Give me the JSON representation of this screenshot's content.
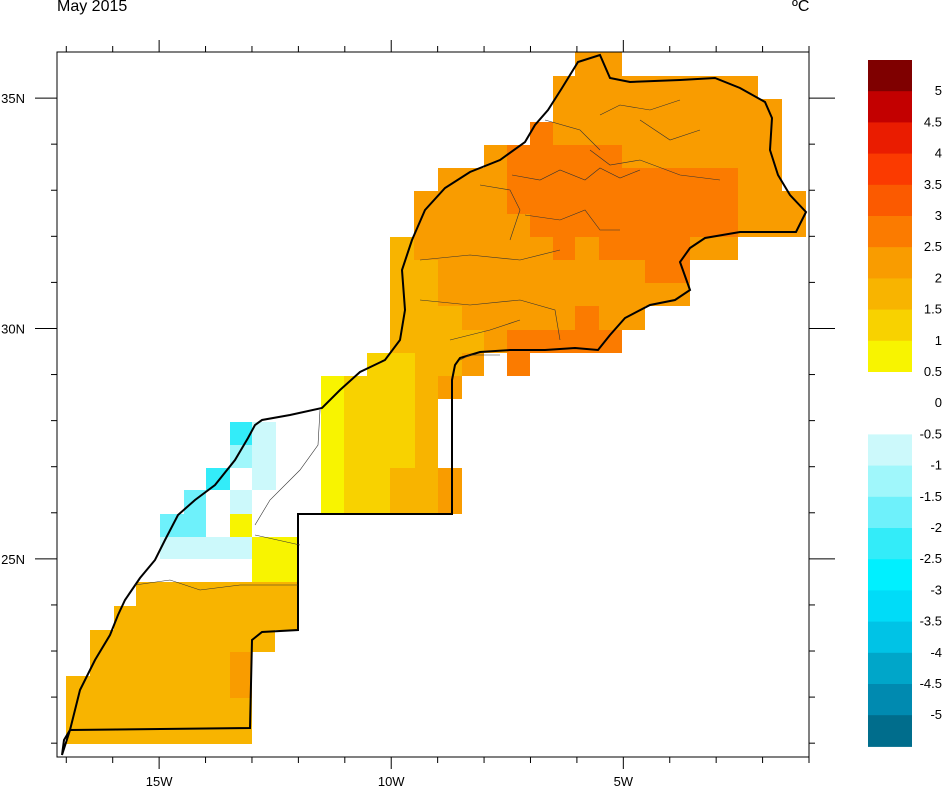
{
  "title": "May 2015",
  "unit": "ºC",
  "chart_data": {
    "type": "heatmap",
    "title": "May 2015",
    "units": "ºC",
    "x_axis": {
      "range": [
        -17.2,
        -1.0
      ],
      "tick_labels": [
        {
          "value": -15,
          "label": "15W"
        },
        {
          "value": -10,
          "label": "10W"
        },
        {
          "value": -5,
          "label": "5W"
        }
      ],
      "minor_ticks": [
        -17,
        -16,
        -14,
        -13,
        -12,
        -11,
        -9,
        -8,
        -7,
        -6,
        -4,
        -3,
        -2,
        -1
      ]
    },
    "y_axis": {
      "range": [
        20.7,
        36.0
      ],
      "tick_labels": [
        {
          "value": 35,
          "label": "35N"
        },
        {
          "value": 30,
          "label": "30N"
        },
        {
          "value": 25,
          "label": "25N"
        }
      ],
      "minor_ticks": [
        21,
        22,
        23,
        24,
        26,
        27,
        28,
        29,
        31,
        32,
        33,
        34
      ]
    },
    "grid": false,
    "legend": {
      "position": "right",
      "levels": [
        {
          "label": "5",
          "color": "#7f0000"
        },
        {
          "label": "4.5",
          "color": "#c30000"
        },
        {
          "label": "4",
          "color": "#ea1c00"
        },
        {
          "label": "3.5",
          "color": "#fb3a00"
        },
        {
          "label": "3",
          "color": "#fb5a00"
        },
        {
          "label": "2.5",
          "color": "#fb7b00"
        },
        {
          "label": "2",
          "color": "#f99c00"
        },
        {
          "label": "1.5",
          "color": "#f8b400"
        },
        {
          "label": "1",
          "color": "#f8d200"
        },
        {
          "label": "0.5",
          "color": "#f8f400"
        },
        {
          "label": "0",
          "color": "#ffffff"
        },
        {
          "label": "-0.5",
          "color": "#ffffff"
        },
        {
          "label": "-1",
          "color": "#ccf9fb"
        },
        {
          "label": "-1.5",
          "color": "#a0f7fb"
        },
        {
          "label": "-2",
          "color": "#6ef1fb"
        },
        {
          "label": "-2.5",
          "color": "#33ecf9"
        },
        {
          "label": "-3",
          "color": "#00f0ff"
        },
        {
          "label": "-3.5",
          "color": "#00dcf8"
        },
        {
          "label": "-4",
          "color": "#00c3e6"
        },
        {
          "label": "-4.5",
          "color": "#00a6c9"
        },
        {
          "label": "-5",
          "color": "#008ab0"
        },
        {
          "label": "",
          "color": "#006d8c"
        }
      ]
    },
    "cells": [
      {
        "lon": -5.5,
        "lat": 35.75,
        "value": 2.25
      },
      {
        "lon": -5.0,
        "lat": 35.5,
        "value": 2.25
      },
      {
        "lon": -6.0,
        "lat": 35.25,
        "value": 2.25
      },
      {
        "lon": -5.0,
        "lat": 35.0,
        "value": 2.25
      },
      {
        "lon": -3.5,
        "lat": 35.0,
        "value": 2.25
      },
      {
        "lon": -2.5,
        "lat": 35.0,
        "value": 2.25
      },
      {
        "lon": -6.5,
        "lat": 34.5,
        "value": 2.25
      },
      {
        "lon": -5.0,
        "lat": 34.5,
        "value": 2.25
      },
      {
        "lon": -3.0,
        "lat": 34.5,
        "value": 2.25
      },
      {
        "lon": -7.0,
        "lat": 34.0,
        "value": 2.25
      },
      {
        "lon": -5.5,
        "lat": 33.75,
        "value": 2.75
      },
      {
        "lon": -4.0,
        "lat": 34.0,
        "value": 2.25
      },
      {
        "lon": -2.0,
        "lat": 33.5,
        "value": 2.25
      },
      {
        "lon": -7.5,
        "lat": 33.25,
        "value": 2.25
      },
      {
        "lon": -5.5,
        "lat": 32.75,
        "value": 2.75
      },
      {
        "lon": -3.5,
        "lat": 32.75,
        "value": 2.75
      },
      {
        "lon": -8.5,
        "lat": 32.5,
        "value": 2.25
      },
      {
        "lon": -9.25,
        "lat": 31.5,
        "value": 2.25
      },
      {
        "lon": -6.5,
        "lat": 31.5,
        "value": 2.75
      },
      {
        "lon": -4.5,
        "lat": 31.75,
        "value": 2.75
      },
      {
        "lon": -9.25,
        "lat": 30.5,
        "value": 1.75
      },
      {
        "lon": -7.0,
        "lat": 30.25,
        "value": 2.25
      },
      {
        "lon": -4.5,
        "lat": 30.75,
        "value": 2.25
      },
      {
        "lon": -10.0,
        "lat": 29.25,
        "value": 1.25
      },
      {
        "lon": -8.75,
        "lat": 29.25,
        "value": 1.75
      },
      {
        "lon": -7.0,
        "lat": 29.5,
        "value": 2.75
      },
      {
        "lon": -11.25,
        "lat": 28.25,
        "value": 0.75
      },
      {
        "lon": -10.25,
        "lat": 27.5,
        "value": 1.25
      },
      {
        "lon": -9.0,
        "lat": 27.0,
        "value": 1.75
      },
      {
        "lon": -8.5,
        "lat": 26.5,
        "value": 2.25
      },
      {
        "lon": -11.25,
        "lat": 26.75,
        "value": 0.75
      },
      {
        "lon": -12.25,
        "lat": 25.0,
        "value": 0.75
      },
      {
        "lon": -13.0,
        "lat": 25.75,
        "value": 0.75
      },
      {
        "lon": -13.25,
        "lat": 27.5,
        "value": -2.75
      },
      {
        "lon": -12.75,
        "lat": 27.0,
        "value": -1.25
      },
      {
        "lon": -13.75,
        "lat": 26.75,
        "value": -2.25
      },
      {
        "lon": -14.5,
        "lat": 26.25,
        "value": -1.75
      },
      {
        "lon": -15.0,
        "lat": 25.75,
        "value": -1.75
      },
      {
        "lon": -14.0,
        "lat": 25.25,
        "value": -1.25
      },
      {
        "lon": -14.5,
        "lat": 24.0,
        "value": 1.75
      },
      {
        "lon": -15.5,
        "lat": 23.0,
        "value": 1.75
      },
      {
        "lon": -13.0,
        "lat": 22.5,
        "value": 1.75
      },
      {
        "lon": -13.0,
        "lat": 22.0,
        "value": 2.25
      },
      {
        "lon": -16.0,
        "lat": 21.5,
        "value": 1.75
      }
    ]
  }
}
